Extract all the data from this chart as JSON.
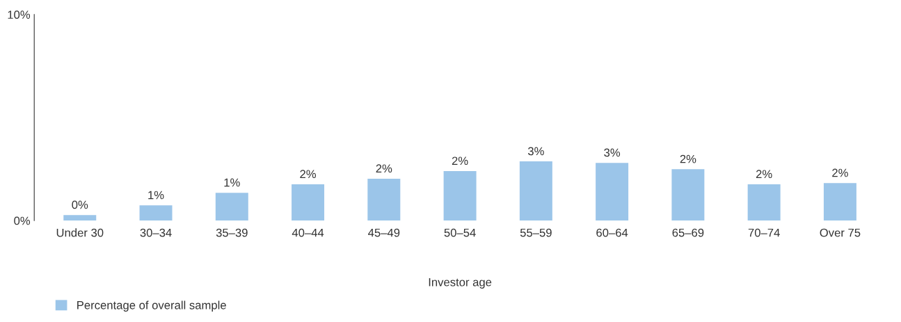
{
  "chart_data": {
    "type": "bar",
    "xlabel": "Investor age",
    "categories": [
      "Under 30",
      "30–34",
      "35–39",
      "40–44",
      "45–49",
      "50–54",
      "55–59",
      "60–64",
      "65–69",
      "70–74",
      "Over 75"
    ],
    "series": [
      {
        "name": "Percentage of overall sample",
        "color": "#9bc5e9",
        "values": [
          0.27,
          0.74,
          1.35,
          1.76,
          2.03,
          2.4,
          2.87,
          2.8,
          2.49,
          1.76,
          1.82
        ],
        "value_labels": [
          "0%",
          "1%",
          "1%",
          "2%",
          "2%",
          "2%",
          "3%",
          "3%",
          "2%",
          "2%",
          "2%"
        ]
      }
    ],
    "ylim": [
      0,
      10
    ],
    "yticks": [
      {
        "value": 0,
        "label": "0%"
      },
      {
        "value": 10,
        "label": "10%"
      }
    ],
    "grid": false,
    "legend": "bottom left"
  }
}
